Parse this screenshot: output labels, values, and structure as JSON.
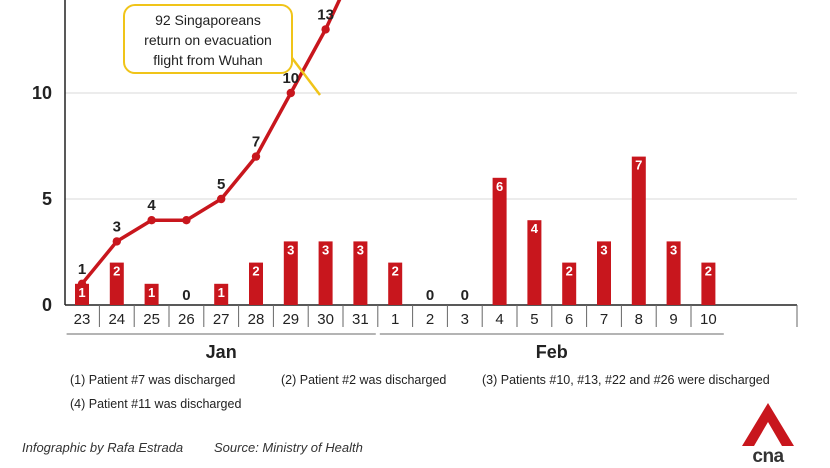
{
  "chart_data": {
    "type": "bar",
    "categories": [
      "23",
      "24",
      "25",
      "26",
      "27",
      "28",
      "29",
      "30",
      "31",
      "1",
      "2",
      "3",
      "4",
      "5",
      "6",
      "7",
      "8",
      "9",
      "10"
    ],
    "series": [
      {
        "values": [
          1,
          2,
          1,
          0,
          1,
          2,
          3,
          3,
          3,
          2,
          0,
          0,
          6,
          4,
          2,
          3,
          7,
          3,
          2
        ]
      },
      {
        "type": "line",
        "values": [
          1,
          3,
          4,
          4,
          5,
          7,
          10,
          13,
          null,
          null,
          null,
          null,
          null,
          null,
          null,
          null,
          null,
          null,
          null
        ]
      }
    ],
    "line_labels": [
      "1",
      "3",
      "4",
      "",
      "5",
      "7",
      "10",
      "13"
    ],
    "ylim": [
      0,
      14
    ],
    "yticks": [
      0,
      5,
      10
    ],
    "grid": true,
    "months": [
      {
        "label": "Jan",
        "from": 0,
        "to": 8
      },
      {
        "label": "Feb",
        "from": 9,
        "to": 18
      }
    ],
    "colors": {
      "bar": "#c8161d",
      "line": "#c8161d",
      "callout_border": "#f0c419"
    }
  },
  "callout": {
    "lines": [
      "92 Singaporeans",
      "return on evacuation",
      "flight from Wuhan"
    ]
  },
  "notes": [
    "(1) Patient #7 was discharged",
    "(2) Patient #2 was discharged",
    "(3) Patients #10, #13, #22 and #26 were discharged",
    "(4) Patient #11 was discharged"
  ],
  "footer": {
    "credit": "Infographic by Rafa Estrada",
    "source": "Source: Ministry of Health"
  },
  "logo": {
    "text": "cna",
    "color": "#c8161d"
  }
}
